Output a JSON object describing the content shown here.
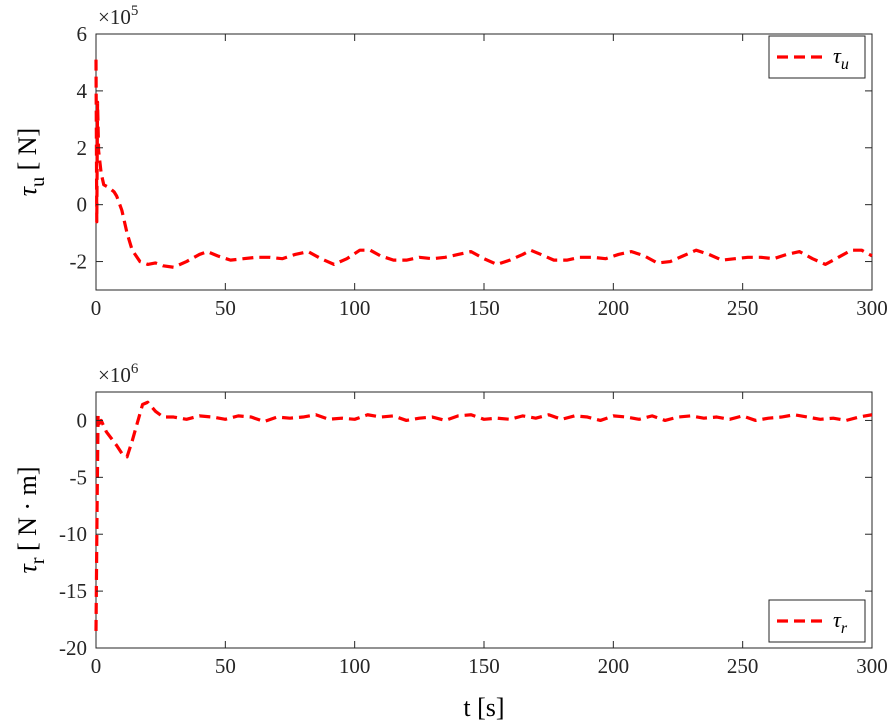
{
  "chart_data": [
    {
      "type": "line",
      "exponent_base": "×10",
      "exponent_power": "5",
      "ylabel_symbol": "τ",
      "ylabel_sub": "u",
      "ylabel_unit": "[ N]",
      "xlabel": "",
      "xlim": [
        0,
        300
      ],
      "ylim": [
        -3,
        6
      ],
      "xticks": [
        "0",
        "50",
        "100",
        "150",
        "200",
        "250",
        "300"
      ],
      "xtick_values": [
        0,
        50,
        100,
        150,
        200,
        250,
        300
      ],
      "yticks": [
        "-2",
        "0",
        "2",
        "4",
        "6"
      ],
      "ytick_values": [
        -2,
        0,
        2,
        4,
        6
      ],
      "legend_symbol": "τ",
      "legend_sub": "u",
      "legend_position": "top-right",
      "grid": false,
      "series": [
        {
          "color": "#ff0000",
          "style": "dashed",
          "x": [
            0,
            0.3,
            0.6,
            1,
            2,
            3,
            5,
            7,
            8,
            10,
            12,
            14,
            17,
            20,
            23,
            26,
            30,
            35,
            40,
            43,
            47,
            52,
            57,
            62,
            67,
            72,
            77,
            82,
            87,
            92,
            97,
            102,
            106,
            110,
            115,
            120,
            125,
            130,
            135,
            140,
            145,
            150,
            155,
            160,
            165,
            168,
            172,
            177,
            182,
            187,
            192,
            197,
            202,
            207,
            212,
            217,
            222,
            227,
            232,
            237,
            242,
            247,
            252,
            257,
            262,
            267,
            272,
            277,
            282,
            287,
            292,
            296,
            300
          ],
          "y": [
            5.1,
            -0.6,
            3.6,
            1.9,
            1.1,
            0.7,
            0.6,
            0.45,
            0.3,
            -0.2,
            -1.0,
            -1.6,
            -2.0,
            -2.1,
            -2.05,
            -2.15,
            -2.2,
            -2.0,
            -1.75,
            -1.65,
            -1.8,
            -1.95,
            -1.9,
            -1.85,
            -1.85,
            -1.9,
            -1.75,
            -1.65,
            -1.9,
            -2.1,
            -1.9,
            -1.6,
            -1.6,
            -1.8,
            -1.95,
            -1.95,
            -1.85,
            -1.9,
            -1.85,
            -1.75,
            -1.65,
            -1.9,
            -2.1,
            -1.95,
            -1.75,
            -1.6,
            -1.75,
            -1.95,
            -1.95,
            -1.85,
            -1.85,
            -1.9,
            -1.75,
            -1.65,
            -1.8,
            -2.05,
            -2.0,
            -1.8,
            -1.6,
            -1.75,
            -1.95,
            -1.9,
            -1.85,
            -1.85,
            -1.9,
            -1.75,
            -1.65,
            -1.9,
            -2.1,
            -1.85,
            -1.6,
            -1.6,
            -1.8
          ]
        }
      ]
    },
    {
      "type": "line",
      "exponent_base": "×10",
      "exponent_power": "6",
      "ylabel_symbol": "τ",
      "ylabel_sub": "r",
      "ylabel_unit": "[ N · m]",
      "xlabel": "t [s]",
      "xlim": [
        0,
        300
      ],
      "ylim": [
        -20,
        2.5
      ],
      "xticks": [
        "0",
        "50",
        "100",
        "150",
        "200",
        "250",
        "300"
      ],
      "xtick_values": [
        0,
        50,
        100,
        150,
        200,
        250,
        300
      ],
      "yticks": [
        "-20",
        "-15",
        "-10",
        "-5",
        "0"
      ],
      "ytick_values": [
        -20,
        -15,
        -10,
        -5,
        0
      ],
      "legend_symbol": "τ",
      "legend_sub": "r",
      "legend_position": "bottom-right",
      "grid": false,
      "series": [
        {
          "color": "#ff0000",
          "style": "dashed",
          "x": [
            0,
            0.4,
            0.8,
            1.2,
            2,
            3,
            4,
            6,
            8,
            10,
            12,
            14,
            16,
            18,
            20,
            23,
            26,
            30,
            35,
            40,
            45,
            50,
            55,
            60,
            65,
            70,
            75,
            80,
            85,
            90,
            95,
            100,
            105,
            110,
            115,
            120,
            125,
            130,
            135,
            140,
            145,
            150,
            155,
            160,
            165,
            170,
            175,
            180,
            185,
            190,
            195,
            200,
            205,
            210,
            215,
            220,
            225,
            230,
            235,
            240,
            245,
            250,
            255,
            260,
            265,
            270,
            275,
            280,
            285,
            290,
            295,
            300
          ],
          "y": [
            -18.5,
            -8,
            0.4,
            -0.3,
            0.0,
            -0.5,
            -1.0,
            -1.6,
            -2.2,
            -2.9,
            -3.2,
            -1.8,
            -0.2,
            1.4,
            1.6,
            0.8,
            0.3,
            0.3,
            0.1,
            0.4,
            0.3,
            0.1,
            0.4,
            0.3,
            -0.1,
            0.3,
            0.2,
            0.3,
            0.5,
            0.1,
            0.2,
            0.1,
            0.5,
            0.3,
            0.4,
            0.0,
            0.2,
            0.3,
            0.0,
            0.4,
            0.5,
            0.1,
            0.2,
            0.1,
            0.4,
            0.2,
            0.5,
            0.1,
            0.4,
            0.3,
            0.0,
            0.4,
            0.3,
            0.1,
            0.4,
            0.0,
            0.3,
            0.4,
            0.2,
            0.3,
            0.1,
            0.4,
            0.0,
            0.2,
            0.3,
            0.5,
            0.3,
            0.1,
            0.2,
            0.0,
            0.3,
            0.5
          ]
        }
      ]
    }
  ]
}
